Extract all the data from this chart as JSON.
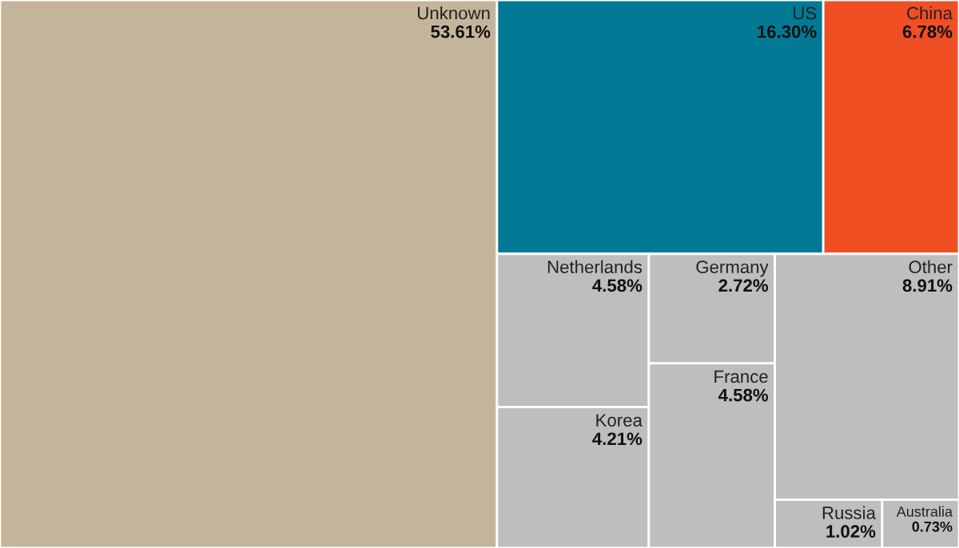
{
  "chart_data": {
    "type": "other",
    "categories": [
      "Unknown",
      "US",
      "China",
      "Netherlands",
      "Korea",
      "Germany",
      "France",
      "Other",
      "Russia",
      "Australia"
    ],
    "values": [
      53.61,
      16.3,
      6.78,
      4.58,
      4.21,
      2.72,
      4.58,
      8.91,
      1.02,
      0.73
    ],
    "value_labels": [
      "53.61%",
      "16.30%",
      "6.78%",
      "4.58%",
      "4.21%",
      "2.72%",
      "4.58%",
      "8.91%",
      "1.02%",
      "0.73%"
    ],
    "colors": [
      "#c4b59a",
      "#007a94",
      "#f04e23",
      "#bcbec0",
      "#bcbec0",
      "#bcbec0",
      "#bcbec0",
      "#bcbec0",
      "#bcbec0",
      "#bcbec0"
    ]
  }
}
